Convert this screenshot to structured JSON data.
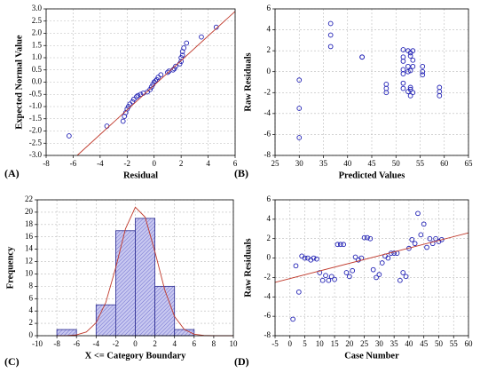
{
  "chart_data": [
    {
      "type": "scatter",
      "panel_label": "(A)",
      "xlabel": "Residual",
      "ylabel": "Expected Normal Value",
      "xlim": [
        -8,
        6
      ],
      "xticks": [
        -8,
        -6,
        -4,
        -2,
        0,
        2,
        4,
        6
      ],
      "ylim": [
        -3,
        3
      ],
      "yticks": [
        {
          "value": -3,
          "label": "-3.0"
        },
        -2.5,
        {
          "value": -2,
          "label": "-2.0"
        },
        -1.5,
        {
          "value": -1,
          "label": "-1.0"
        },
        -0.5,
        {
          "value": 0,
          "label": "0.0"
        },
        0.5,
        {
          "value": 1,
          "label": "1.0"
        },
        1.5,
        {
          "value": 2,
          "label": "2.0"
        },
        2.5,
        {
          "value": 3,
          "label": "3.0"
        }
      ],
      "grid": true,
      "color": "#1f1fb4",
      "x": [
        -6.3,
        -3.5,
        -2.3,
        -2.2,
        -2.1,
        -2.0,
        -1.9,
        -1.8,
        -1.6,
        -1.5,
        -1.3,
        -1.2,
        -1.0,
        -0.8,
        -0.5,
        -0.3,
        -0.2,
        -0.1,
        0,
        0.1,
        0.2,
        0.3,
        0.5,
        1.0,
        1.1,
        1.4,
        1.5,
        1.6,
        1.9,
        2.0,
        2.0,
        2.1,
        2.1,
        2.2,
        2.4,
        3.5,
        4.6
      ],
      "values": [
        -2.2,
        -1.8,
        -1.6,
        -1.4,
        -1.25,
        -1.1,
        -1.0,
        -0.9,
        -0.8,
        -0.7,
        -0.6,
        -0.55,
        -0.5,
        -0.45,
        -0.4,
        -0.3,
        -0.2,
        -0.1,
        0,
        0.05,
        0.1,
        0.2,
        0.3,
        0.4,
        0.45,
        0.5,
        0.55,
        0.65,
        0.75,
        0.85,
        1.0,
        1.1,
        1.25,
        1.4,
        1.6,
        1.85,
        2.25
      ],
      "line": {
        "x": [
          -5.7,
          6
        ],
        "values": [
          -3,
          2.9
        ],
        "color": "#c0392b"
      }
    },
    {
      "type": "scatter",
      "panel_label": "(B)",
      "xlabel": "Predicted Values",
      "ylabel": "Raw Residuals",
      "xlim": [
        25,
        65
      ],
      "xticks": [
        25,
        30,
        35,
        40,
        45,
        50,
        55,
        60,
        65
      ],
      "ylim": [
        -8,
        6
      ],
      "yticks": [
        -8,
        -6,
        -4,
        -2,
        0,
        2,
        4,
        6
      ],
      "grid": true,
      "color": "#1f1fb4",
      "x": [
        30,
        30,
        30,
        36.5,
        36.5,
        36.5,
        43,
        43,
        48,
        48,
        48,
        51.5,
        51.5,
        51.5,
        51.5,
        51.5,
        51.5,
        51.5,
        52.5,
        52.5,
        52.5,
        52.5,
        53,
        53,
        53,
        53,
        53,
        53,
        53.5,
        53.5,
        53.5,
        53.5,
        55.5,
        55.5,
        55.5,
        59,
        59,
        59
      ],
      "values": [
        -0.8,
        -3.5,
        -6.3,
        4.6,
        3.5,
        2.4,
        1.4,
        1.4,
        -1.2,
        -1.6,
        -2.0,
        2.1,
        1.4,
        1.0,
        0.2,
        -0.2,
        -1.1,
        -1.6,
        2.0,
        0.5,
        0,
        -1.9,
        1.8,
        1.5,
        0.1,
        -1.5,
        -1.7,
        -2.3,
        2.0,
        1.1,
        0.5,
        -2.0,
        0.5,
        0,
        -0.3,
        -1.5,
        -1.9,
        -2.3
      ],
      "line": null
    },
    {
      "type": "histogram",
      "panel_label": "(C)",
      "xlabel": "X <= Category Boundary",
      "ylabel": "Frequency",
      "xlim": [
        -10,
        10
      ],
      "xticks": [
        -10,
        -8,
        -6,
        -4,
        -2,
        0,
        2,
        4,
        6,
        8,
        10
      ],
      "ylim": [
        0,
        22
      ],
      "yticks": [
        0,
        2,
        4,
        6,
        8,
        10,
        12,
        14,
        16,
        18,
        20,
        22
      ],
      "grid": true,
      "color": "#b9b9ea",
      "bins": [
        -8,
        -6,
        -4,
        -2,
        0,
        2,
        4,
        6
      ],
      "values": [
        1,
        0,
        5,
        17,
        19,
        8,
        1
      ],
      "line": {
        "x": [
          -8,
          -7,
          -6,
          -5,
          -4,
          -3,
          -2,
          -1,
          0,
          1,
          2,
          3,
          4,
          5,
          6,
          7,
          8,
          9,
          10
        ],
        "values": [
          0,
          0.02,
          0.13,
          0.6,
          2.1,
          5.4,
          11,
          17.3,
          20.8,
          19.2,
          13.6,
          7.4,
          3.1,
          1,
          0.25,
          0.05,
          0,
          0,
          0
        ],
        "color": "#c0392b"
      }
    },
    {
      "type": "scatter",
      "panel_label": "(D)",
      "xlabel": "Case Number",
      "ylabel": "Raw Residuals",
      "xlim": [
        -5,
        60
      ],
      "xticks": [
        -5,
        0,
        5,
        10,
        15,
        20,
        25,
        30,
        35,
        40,
        45,
        50,
        55,
        60
      ],
      "ylim": [
        -8,
        6
      ],
      "yticks": [
        -8,
        -6,
        -4,
        -2,
        0,
        2,
        4,
        6
      ],
      "grid": true,
      "color": "#1f1fb4",
      "x": [
        1,
        2,
        3,
        4,
        5,
        6,
        7,
        8,
        9,
        10,
        11,
        12,
        13,
        14,
        15,
        16,
        17,
        18,
        19,
        20,
        21,
        22,
        23,
        24,
        25,
        26,
        27,
        28,
        29,
        30,
        31,
        32,
        33,
        34,
        35,
        36,
        37,
        38,
        39,
        40,
        41,
        42,
        43,
        44,
        45,
        46,
        47,
        48,
        49,
        50,
        51
      ],
      "values": [
        -6.3,
        -0.8,
        -3.5,
        0.2,
        0,
        0,
        -0.2,
        0,
        -0.1,
        -1.5,
        -2.3,
        -1.8,
        -2.3,
        -1.9,
        -2.2,
        1.4,
        1.4,
        1.4,
        -1.5,
        -1.9,
        -1.3,
        0.1,
        -0.2,
        0,
        2.1,
        2.1,
        2.0,
        -1.2,
        -2.0,
        -1.7,
        -0.5,
        0.2,
        0,
        0.5,
        0.5,
        0.5,
        -2.3,
        -1.5,
        -1.9,
        1.0,
        1.9,
        1.5,
        4.6,
        2.4,
        3.5,
        1.1,
        2.0,
        1.5,
        2.0,
        1.7,
        1.9
      ],
      "line": {
        "x": [
          -5,
          60
        ],
        "values": [
          -2.5,
          2.6
        ],
        "color": "#c0392b"
      }
    }
  ]
}
